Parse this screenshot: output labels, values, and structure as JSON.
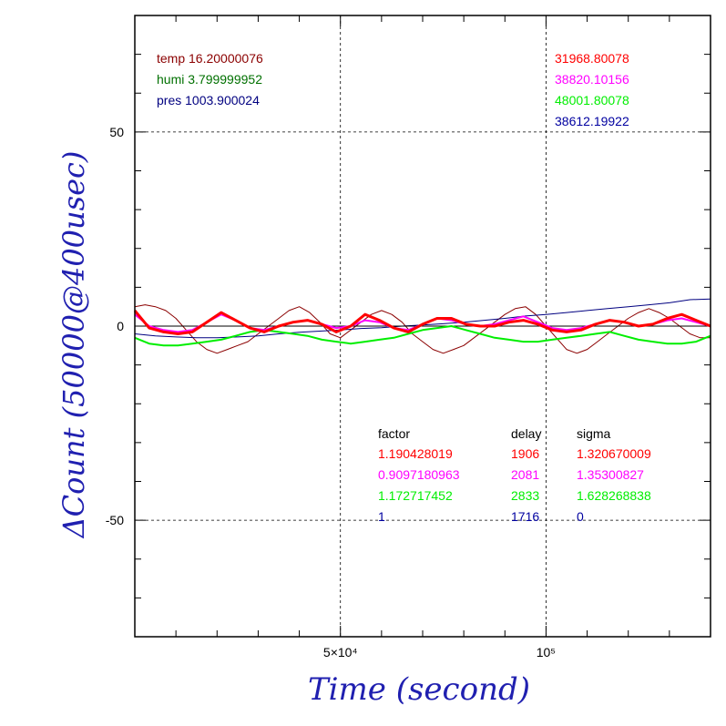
{
  "chart_data": {
    "type": "line",
    "xlabel": "Time (second)",
    "ylabel": "ΔCount (50000@400usec)",
    "xlim": [
      0,
      140000
    ],
    "ylim": [
      -80,
      80
    ],
    "x_ticks": [
      {
        "value": 50000,
        "label": "5×10⁴"
      },
      {
        "value": 100000,
        "label": "10⁵"
      }
    ],
    "y_ticks": [
      {
        "value": 50,
        "label": "50"
      },
      {
        "value": 0,
        "label": "0"
      },
      {
        "value": -50,
        "label": "-50"
      }
    ],
    "grid": true,
    "env": [
      {
        "label": "temp 16.20000076",
        "color": "#8b0000"
      },
      {
        "label": "humi 3.799999952",
        "color": "#007000"
      },
      {
        "label": "pres 1003.900024",
        "color": "#000080"
      }
    ],
    "counts": [
      {
        "value": "31968.80078",
        "color": "#ff0000"
      },
      {
        "value": "38820.10156",
        "color": "#ff00ff"
      },
      {
        "value": "48001.80078",
        "color": "#00ee00"
      },
      {
        "value": "38612.19922",
        "color": "#0000a0"
      }
    ],
    "table": {
      "headers": [
        "factor",
        "delay",
        "sigma"
      ],
      "rows": [
        {
          "factor": "1.190428019",
          "delay": "1906",
          "sigma": "1.320670009",
          "color": "#ff0000"
        },
        {
          "factor": "0.9097180963",
          "delay": "2081",
          "sigma": "1.35300827",
          "color": "#ff00ff"
        },
        {
          "factor": "1.172717452",
          "delay": "2833",
          "sigma": "1.628268838",
          "color": "#00ee00"
        },
        {
          "factor": "1",
          "delay": "1716",
          "sigma": "0",
          "color": "#0000a0"
        }
      ]
    },
    "series": [
      {
        "color": "#8b0000",
        "width": 1,
        "x": [
          0,
          2500,
          5000,
          7500,
          10000,
          12500,
          15000,
          17500,
          20000,
          22500,
          25000,
          27500,
          30000,
          32500,
          35000,
          37500,
          40000,
          42500,
          45000,
          47500,
          50000,
          52500,
          55000,
          57500,
          60000,
          62500,
          65000,
          67500,
          70000,
          72500,
          75000,
          77500,
          80000,
          82500,
          85000,
          87500,
          90000,
          92500,
          95000,
          97500,
          100000,
          102500,
          105000,
          107500,
          110000,
          112500,
          115000,
          117500,
          120000,
          122500,
          125000,
          127500,
          130000,
          132500,
          135000,
          137500,
          140000
        ],
        "y": [
          5,
          5.5,
          5,
          4,
          2,
          -1,
          -4,
          -6,
          -7,
          -6,
          -5,
          -4,
          -2,
          0,
          2,
          4,
          5,
          3.5,
          1,
          -2,
          -3,
          -1,
          1,
          3,
          4,
          3,
          1,
          -2,
          -4,
          -6,
          -7,
          -6,
          -5,
          -3,
          -1,
          1,
          3,
          4.5,
          5,
          3,
          0,
          -3,
          -6,
          -7,
          -6,
          -4,
          -2,
          0,
          2,
          3.5,
          4.5,
          3.5,
          2,
          0,
          -2,
          -3,
          -3
        ]
      },
      {
        "color": "#000080",
        "width": 1,
        "x": [
          0,
          5000,
          10000,
          15000,
          20000,
          25000,
          30000,
          35000,
          40000,
          45000,
          50000,
          55000,
          60000,
          65000,
          70000,
          75000,
          80000,
          85000,
          90000,
          95000,
          100000,
          105000,
          110000,
          115000,
          120000,
          125000,
          130000,
          135000,
          140000
        ],
        "y": [
          -2,
          -2.5,
          -2.8,
          -3,
          -3,
          -2.8,
          -2.5,
          -2,
          -1.6,
          -1.3,
          -1,
          -0.6,
          -0.4,
          0,
          0.3,
          0.6,
          1,
          1.5,
          2,
          2.6,
          3,
          3.5,
          4,
          4.5,
          5,
          5.5,
          6,
          6.8,
          7
        ]
      },
      {
        "color": "#000000",
        "width": 1,
        "x": [
          0,
          7000,
          14000,
          21000,
          28000,
          35000,
          42000,
          49000,
          56000,
          63000,
          70000,
          77000,
          84000,
          91000,
          98000,
          105000,
          112000,
          119000,
          126000,
          133000,
          140000
        ],
        "y": [
          0,
          0,
          0,
          0,
          0,
          0,
          0,
          0,
          0,
          0,
          0,
          0,
          0,
          0,
          0,
          0,
          0,
          0,
          0,
          0,
          0
        ]
      },
      {
        "color": "#00ee00",
        "width": 2,
        "x": [
          0,
          3500,
          7000,
          10500,
          14000,
          17500,
          21000,
          24500,
          28000,
          31500,
          35000,
          38500,
          42000,
          45500,
          49000,
          52500,
          56000,
          59500,
          63000,
          66500,
          70000,
          73500,
          77000,
          80500,
          84000,
          87500,
          91000,
          94500,
          98000,
          101500,
          105000,
          108500,
          112000,
          115500,
          119000,
          122500,
          126000,
          129500,
          133000,
          136500,
          140000
        ],
        "y": [
          -3,
          -4.5,
          -5,
          -5,
          -4.5,
          -4,
          -3.5,
          -2.5,
          -1.5,
          -1,
          -1.5,
          -2,
          -2.5,
          -3.5,
          -4,
          -4.5,
          -4,
          -3.5,
          -3,
          -2,
          -1,
          -0.5,
          0,
          -1,
          -2,
          -3,
          -3.5,
          -4,
          -4,
          -3.5,
          -3,
          -2.5,
          -2,
          -1.5,
          -2.5,
          -3.5,
          -4,
          -4.5,
          -4.5,
          -4,
          -2.5
        ]
      },
      {
        "color": "#ff00ff",
        "width": 2,
        "x": [
          0,
          3500,
          7000,
          10500,
          14000,
          17500,
          21000,
          24500,
          28000,
          31500,
          35000,
          38500,
          42000,
          45500,
          49000,
          52500,
          56000,
          59500,
          63000,
          66500,
          70000,
          73500,
          77000,
          80500,
          84000,
          87500,
          91000,
          94500,
          98000,
          101500,
          105000,
          108500,
          112000,
          115500,
          119000,
          122500,
          126000,
          129500,
          133000,
          136500,
          140000
        ],
        "y": [
          3,
          0,
          -1,
          -1.5,
          -1,
          1,
          3,
          1.5,
          -0.5,
          -1,
          0,
          1,
          1.5,
          0.5,
          -0.5,
          0,
          1.5,
          1,
          -0.5,
          -1,
          0.5,
          2,
          1.5,
          0.5,
          0,
          0.5,
          1.5,
          2.5,
          1,
          -0.5,
          -1,
          -0.5,
          0.5,
          1.5,
          1,
          0,
          0.5,
          1.5,
          2,
          1,
          0
        ]
      },
      {
        "color": "#ff0000",
        "width": 3,
        "x": [
          0,
          3500,
          7000,
          10500,
          14000,
          17500,
          21000,
          24500,
          28000,
          31500,
          35000,
          38500,
          42000,
          45500,
          49000,
          52500,
          56000,
          59500,
          63000,
          66500,
          70000,
          73500,
          77000,
          80500,
          84000,
          87500,
          91000,
          94500,
          98000,
          101500,
          105000,
          108500,
          112000,
          115500,
          119000,
          122500,
          126000,
          129500,
          133000,
          136500,
          140000
        ],
        "y": [
          4,
          -0.5,
          -1.5,
          -2,
          -1.5,
          1,
          3.5,
          1.5,
          -0.5,
          -1.5,
          0,
          1,
          1.5,
          0.5,
          -1.5,
          0,
          3,
          1.5,
          -0.5,
          -1.5,
          0.5,
          2,
          2,
          0.5,
          0,
          0,
          1,
          1.5,
          0.5,
          -1,
          -1.5,
          -1,
          0.5,
          1.5,
          1,
          0,
          0.5,
          2,
          3,
          1.5,
          0
        ]
      }
    ]
  }
}
